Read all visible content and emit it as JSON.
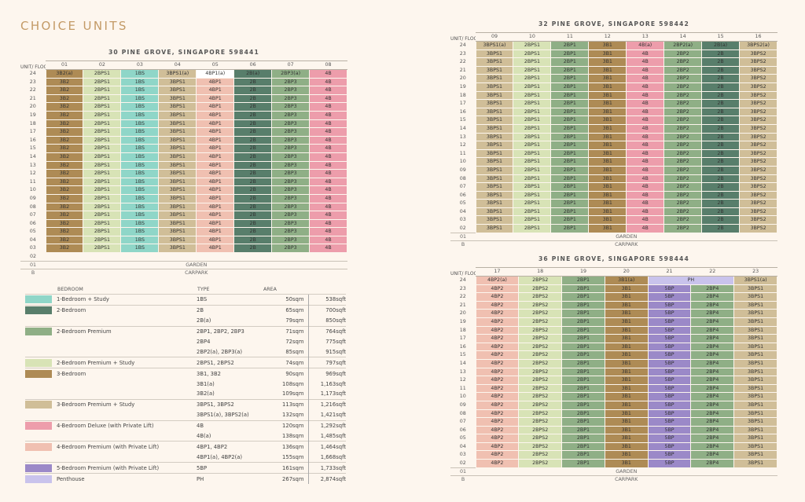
{
  "page_title": "CHOICE UNITS",
  "colors": {
    "1BS": "#8fd6c8",
    "2B": "#587e6b",
    "2B(a)": "#587e6b",
    "2BP1": "#8faf86",
    "2BP2": "#8faf86",
    "2BP3": "#8faf86",
    "2BP4": "#8faf86",
    "2BP2(a)": "#8faf86",
    "2BP3(a)": "#8faf86",
    "2BPS1": "#d8e3b6",
    "2BPS2": "#d8e3b6",
    "3B1": "#ae8b55",
    "3B2": "#ae8b55",
    "3B1(a)": "#ae8b55",
    "3B2(a)": "#ae8b55",
    "3BPS1": "#d0be98",
    "3BPS2": "#d0be98",
    "3BPS1(a)": "#d0be98",
    "3BPS2(a)": "#d0be98",
    "4B": "#ed9dab",
    "4B(a)": "#ed9dab",
    "4BP1": "#f0c0b1",
    "4BP2": "#f0c0b1",
    "4BP2(a)": "#f0c0b1",
    "5BP": "#9b89c8",
    "PH": "#c9c3ec"
  },
  "labels": {
    "unit_floor": "UNIT/ FLOOR",
    "garden": "GARDEN",
    "carpark": "CARPARK",
    "basement": "B"
  },
  "blocks": [
    {
      "id": "b441",
      "title": "30 PINE GROVE, SINGAPORE 598441",
      "units": [
        "01",
        "02",
        "03",
        "04",
        "05",
        "06",
        "07",
        "08"
      ],
      "top_floor": "24",
      "top_row": [
        "3B2(a)",
        "2BPS1",
        "1BS",
        "3BPS1(a)",
        "4BP1(a)",
        "2B(a)",
        "2BP3(a)",
        "4B"
      ],
      "mid_from": 23,
      "mid_to": 3,
      "mid_row": [
        "3B2",
        "2BPS1",
        "1BS",
        "3BPS1",
        "4BP1",
        "2B",
        "2BP3",
        "4B"
      ],
      "empty_floors": [
        "02"
      ],
      "garden_floor": "01"
    },
    {
      "id": "b442",
      "title": "32 PINE GROVE, SINGAPORE 598442",
      "units": [
        "09",
        "10",
        "11",
        "12",
        "13",
        "14",
        "15",
        "16"
      ],
      "top_floor": "24",
      "top_row": [
        "3BPS1(a)",
        "2BPS1",
        "2BP1",
        "3B1",
        "4B(a)",
        "2BP2(a)",
        "2B(a)",
        "3BPS2(a)"
      ],
      "mid_from": 23,
      "mid_to": 2,
      "mid_row": [
        "3BPS1",
        "2BPS1",
        "2BP1",
        "3B1",
        "4B",
        "2BP2",
        "2B",
        "3BPS2"
      ],
      "empty_floors": [],
      "garden_floor": "01"
    },
    {
      "id": "b444",
      "title": "36 PINE GROVE, SINGAPORE 598444",
      "units": [
        "17",
        "18",
        "19",
        "20",
        "21",
        "22",
        "23"
      ],
      "top_floor": "24",
      "top_row": [
        "4BP2(a)",
        "2BPS2",
        "2BP1",
        "3B1(a)",
        "PH",
        "PH",
        "3BPS1(a)"
      ],
      "top_span": {
        "start": 4,
        "len": 2
      },
      "mid_from": 23,
      "mid_to": 2,
      "mid_row": [
        "4BP2",
        "2BPS2",
        "2BP1",
        "3B1",
        "5BP",
        "2BP4",
        "3BPS1"
      ],
      "empty_floors": [],
      "garden_floor": "01"
    }
  ],
  "legend": {
    "headers": {
      "bedroom": "BEDROOM",
      "type": "TYPE",
      "area": "AREA"
    },
    "groups": [
      {
        "name": "1-Bedroom + Study",
        "color": "1BS",
        "rows": [
          {
            "type": "1BS",
            "sqm": "50sqm",
            "sqft": "538sqft"
          }
        ]
      },
      {
        "name": "2-Bedroom",
        "color": "2B",
        "rows": [
          {
            "type": "2B",
            "sqm": "65sqm",
            "sqft": "700sqft"
          },
          {
            "type": "2B(a)",
            "sqm": "79sqm",
            "sqft": "850sqft"
          }
        ]
      },
      {
        "name": "2-Bedroom Premium",
        "color": "2BP1",
        "rows": [
          {
            "type": "2BP1, 2BP2, 2BP3",
            "sqm": "71sqm",
            "sqft": "764sqft"
          },
          {
            "type": "2BP4",
            "sqm": "72sqm",
            "sqft": "775sqft"
          },
          {
            "type": "2BP2(a), 2BP3(a)",
            "sqm": "85sqm",
            "sqft": "915sqft"
          }
        ]
      },
      {
        "name": "2-Bedroom Premium + Study",
        "color": "2BPS1",
        "rows": [
          {
            "type": "2BPS1, 2BPS2",
            "sqm": "74sqm",
            "sqft": "797sqft"
          }
        ]
      },
      {
        "name": "3-Bedroom",
        "color": "3B1",
        "rows": [
          {
            "type": "3B1, 3B2",
            "sqm": "90sqm",
            "sqft": "969sqft"
          },
          {
            "type": "3B1(a)",
            "sqm": "108sqm",
            "sqft": "1,163sqft"
          },
          {
            "type": "3B2(a)",
            "sqm": "109sqm",
            "sqft": "1,173sqft"
          }
        ]
      },
      {
        "name": "3-Bedroom Premium + Study",
        "color": "3BPS1",
        "rows": [
          {
            "type": "3BPS1, 3BPS2",
            "sqm": "113sqm",
            "sqft": "1,216sqft"
          },
          {
            "type": "3BPS1(a), 3BPS2(a)",
            "sqm": "132sqm",
            "sqft": "1,421sqft"
          }
        ]
      },
      {
        "name": "4-Bedroom Deluxe (with Private Lift)",
        "color": "4B",
        "rows": [
          {
            "type": "4B",
            "sqm": "120sqm",
            "sqft": "1,292sqft"
          },
          {
            "type": "4B(a)",
            "sqm": "138sqm",
            "sqft": "1,485sqft"
          }
        ]
      },
      {
        "name": "4-Bedroom Premium (with Private Lift)",
        "color": "4BP1",
        "rows": [
          {
            "type": "4BP1, 4BP2",
            "sqm": "136sqm",
            "sqft": "1,464sqft"
          },
          {
            "type": "4BP1(a), 4BP2(a)",
            "sqm": "155sqm",
            "sqft": "1,668sqft"
          }
        ]
      },
      {
        "name": "5-Bedroom Premium (with Private Lift)",
        "color": "5BP",
        "rows": [
          {
            "type": "5BP",
            "sqm": "161sqm",
            "sqft": "1,733sqft"
          }
        ]
      },
      {
        "name": "Penthouse",
        "color": "PH",
        "rows": [
          {
            "type": "PH",
            "sqm": "267sqm",
            "sqft": "2,874sqft"
          }
        ]
      }
    ]
  }
}
